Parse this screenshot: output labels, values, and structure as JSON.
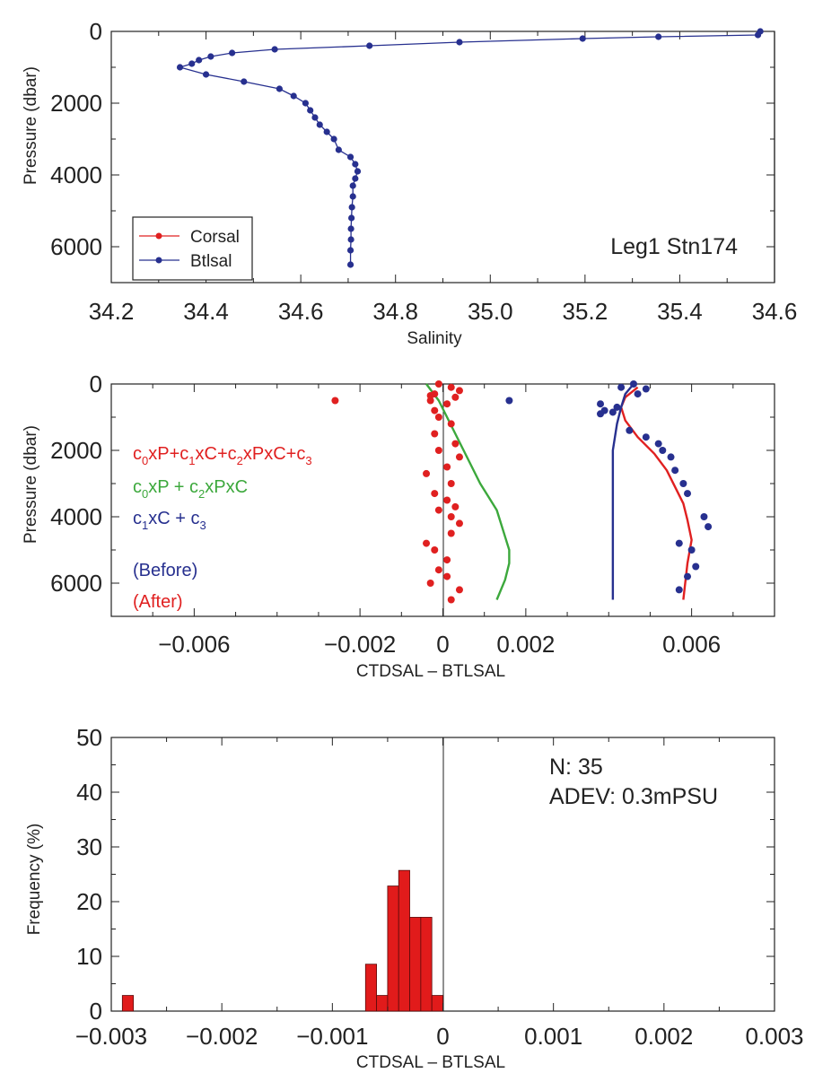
{
  "chart_data": [
    {
      "type": "line",
      "xlabel": "Salinity",
      "ylabel": "Pressure (dbar)",
      "xlim": [
        34.2,
        35.6
      ],
      "ylim": [
        7000,
        0
      ],
      "x_tick_labels": [
        "34.2",
        "34.4",
        "34.6",
        "34.8",
        "35.0",
        "35.2",
        "35.4",
        "34.6"
      ],
      "y_tick_labels": [
        "0",
        "2000",
        "4000",
        "6000"
      ],
      "annotation": "Leg1 Stn174",
      "legend_position": "bottom-left",
      "series": [
        {
          "name": "Corsal",
          "color": "#e02020",
          "x": [],
          "y": []
        },
        {
          "name": "Btlsal",
          "color": "#27308f",
          "x": [
            35.57,
            35.565,
            35.355,
            35.195,
            34.935,
            34.745,
            34.545,
            34.455,
            34.41,
            34.385,
            34.37,
            34.345,
            34.4,
            34.48,
            34.555,
            34.585,
            34.61,
            34.62,
            34.63,
            34.64,
            34.655,
            34.67,
            34.68,
            34.705,
            34.715,
            34.72,
            34.715,
            34.71,
            34.71,
            34.708,
            34.707,
            34.706,
            34.706,
            34.705,
            34.705
          ],
          "y": [
            0,
            100,
            150,
            200,
            300,
            400,
            500,
            600,
            700,
            800,
            900,
            1000,
            1200,
            1400,
            1600,
            1800,
            2000,
            2200,
            2400,
            2600,
            2800,
            3000,
            3300,
            3500,
            3700,
            3900,
            4100,
            4300,
            4600,
            4900,
            5200,
            5500,
            5800,
            6100,
            6500
          ]
        }
      ]
    },
    {
      "type": "scatter",
      "xlabel": "CTDSAL – BTLSAL",
      "ylabel": "Pressure (dbar)",
      "xlim": [
        -0.008,
        0.008
      ],
      "ylim": [
        7000,
        0
      ],
      "x_tick_labels": [
        "−0.006",
        "−0.002",
        "0",
        "0.002",
        "0.006"
      ],
      "y_tick_labels": [
        "0",
        "2000",
        "4000",
        "6000"
      ],
      "annotations": {
        "fit_red": {
          "c1": "c",
          "s1": "0",
          "t1": "xP+",
          "c2": "c",
          "s2": "1",
          "t2": "xC+",
          "c3": "c",
          "s3": "2",
          "t3": "xPxC+",
          "c4": "c",
          "s4": "3"
        },
        "fit_green": {
          "c1": "c",
          "s1": "0",
          "t1": "xP + ",
          "c2": "c",
          "s2": "2",
          "t2": "xPxC"
        },
        "fit_blue": {
          "c1": "c",
          "s1": "1",
          "t1": "xC + ",
          "c2": "c",
          "s2": "3"
        },
        "before": "(Before)",
        "after": "(After)"
      },
      "after_points": {
        "color": "#e02020",
        "x": [
          -0.0026,
          -0.0001,
          0.0002,
          0.0004,
          0.0003,
          0.0001,
          -0.0002,
          -0.0003,
          -0.0002,
          -0.0001,
          0.0002,
          -0.0002,
          0.0003,
          -0.0001,
          0.0004,
          0.0001,
          -0.0004,
          0.0002,
          -0.0002,
          0.0001,
          0.0003,
          -0.0001,
          0.0002,
          0.0004,
          0.0002,
          -0.0004,
          -0.0002,
          0.0001,
          -0.0001,
          0.0001,
          -0.0003,
          0.0004,
          0.0002,
          -0.0003
        ],
        "y": [
          500,
          0,
          100,
          200,
          400,
          600,
          300,
          500,
          800,
          1000,
          1200,
          1500,
          1800,
          2000,
          2200,
          2500,
          2700,
          3000,
          3300,
          3500,
          3700,
          3800,
          4000,
          4200,
          4500,
          4800,
          5000,
          5300,
          5600,
          5800,
          6000,
          6200,
          6500,
          350
        ]
      },
      "before_points": {
        "color": "#27308f",
        "x": [
          0.0016,
          0.0046,
          0.0043,
          0.0049,
          0.0047,
          0.0038,
          0.0042,
          0.0039,
          0.0041,
          0.0038,
          0.0045,
          0.0049,
          0.0052,
          0.0053,
          0.0055,
          0.0056,
          0.0058,
          0.0059,
          0.0063,
          0.0064,
          0.0057,
          0.006,
          0.0061,
          0.0059,
          0.0057
        ],
        "y": [
          500,
          0,
          100,
          150,
          300,
          600,
          700,
          800,
          850,
          900,
          1400,
          1600,
          1800,
          2000,
          2200,
          2600,
          3000,
          3300,
          4000,
          4300,
          4800,
          5000,
          5500,
          5800,
          6200
        ]
      },
      "curves": [
        {
          "name": "c0xP+c1xC+c2xPxC+c3",
          "color": "#e02020",
          "x": [
            0.0047,
            0.0044,
            0.0043,
            0.0044,
            0.0047,
            0.0051,
            0.0054,
            0.0056,
            0.0058,
            0.0059,
            0.006,
            0.0059,
            0.0058
          ],
          "y": [
            100,
            400,
            700,
            1100,
            1600,
            2100,
            2600,
            3100,
            3600,
            4100,
            4700,
            5400,
            6500
          ]
        },
        {
          "name": "c0xP + c2xPxC",
          "color": "#3ca83c",
          "x": [
            -0.0004,
            -0.0001,
            0.0001,
            0.0003,
            0.0005,
            0.0007,
            0.0009,
            0.0011,
            0.0013,
            0.0014,
            0.0015,
            0.0016,
            0.0016,
            0.0015,
            0.0013
          ],
          "y": [
            0,
            500,
            1000,
            1500,
            2000,
            2500,
            3000,
            3400,
            3800,
            4200,
            4600,
            5000,
            5400,
            5900,
            6500
          ]
        },
        {
          "name": "c1xC + c3",
          "color": "#27308f",
          "x": [
            0.0046,
            0.0044,
            0.0043,
            0.0042,
            0.0041,
            0.0041,
            0.0041,
            0.0041
          ],
          "y": [
            0,
            300,
            700,
            1200,
            2000,
            3500,
            5000,
            6500
          ]
        }
      ]
    },
    {
      "type": "bar",
      "xlabel": "CTDSAL – BTLSAL",
      "ylabel": "Frequency (%)",
      "xlim": [
        -0.003,
        0.003
      ],
      "ylim": [
        0,
        50
      ],
      "x_tick_labels": [
        "−0.003",
        "−0.002",
        "−0.001",
        "0",
        "0.001",
        "0.002",
        "0.003"
      ],
      "y_tick_labels": [
        "0",
        "10",
        "20",
        "30",
        "40",
        "50"
      ],
      "stats": {
        "n": "N: 35",
        "adev": "ADEV: 0.3mPSU"
      },
      "bar_color": "#e11b1b",
      "bin_width": 0.0001,
      "bins": [
        {
          "left": -0.0029,
          "value": 2.86
        },
        {
          "left": -0.0007,
          "value": 8.57
        },
        {
          "left": -0.0006,
          "value": 2.86
        },
        {
          "left": -0.0005,
          "value": 22.86
        },
        {
          "left": -0.0004,
          "value": 25.71
        },
        {
          "left": -0.0003,
          "value": 17.14
        },
        {
          "left": -0.0002,
          "value": 17.14
        },
        {
          "left": -0.0001,
          "value": 2.86
        }
      ]
    }
  ]
}
